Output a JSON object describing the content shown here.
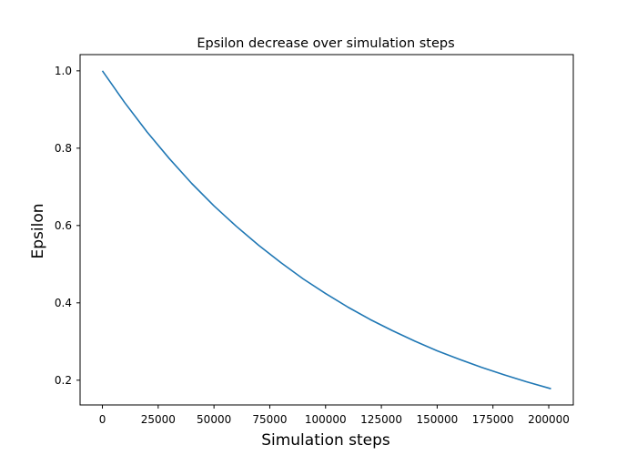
{
  "chart_data": {
    "type": "line",
    "title": "Epsilon decrease over simulation steps",
    "xlabel": "Simulation steps",
    "ylabel": "Epsilon",
    "xlim": [
      -10000,
      211000
    ],
    "ylim": [
      0.136,
      1.042
    ],
    "grid": false,
    "x_ticks": [
      0,
      25000,
      50000,
      75000,
      100000,
      125000,
      150000,
      175000,
      200000
    ],
    "x_tick_labels": [
      "0",
      "25000",
      "50000",
      "75000",
      "100000",
      "125000",
      "150000",
      "175000",
      "200000"
    ],
    "y_ticks": [
      0.2,
      0.4,
      0.6,
      0.8,
      1.0
    ],
    "y_tick_labels": [
      "0.2",
      "0.4",
      "0.6",
      "0.8",
      "1.0"
    ],
    "colors": {
      "line": "#1f77b4"
    },
    "series": [
      {
        "x": [
          0,
          10000,
          20000,
          30000,
          40000,
          50000,
          60000,
          70000,
          80000,
          90000,
          100000,
          110000,
          120000,
          130000,
          140000,
          150000,
          160000,
          170000,
          180000,
          190000,
          201000
        ],
        "values": [
          1.0,
          0.918,
          0.842,
          0.773,
          0.709,
          0.651,
          0.598,
          0.549,
          0.504,
          0.462,
          0.424,
          0.389,
          0.357,
          0.328,
          0.301,
          0.276,
          0.254,
          0.233,
          0.214,
          0.196,
          0.178
        ]
      }
    ]
  }
}
